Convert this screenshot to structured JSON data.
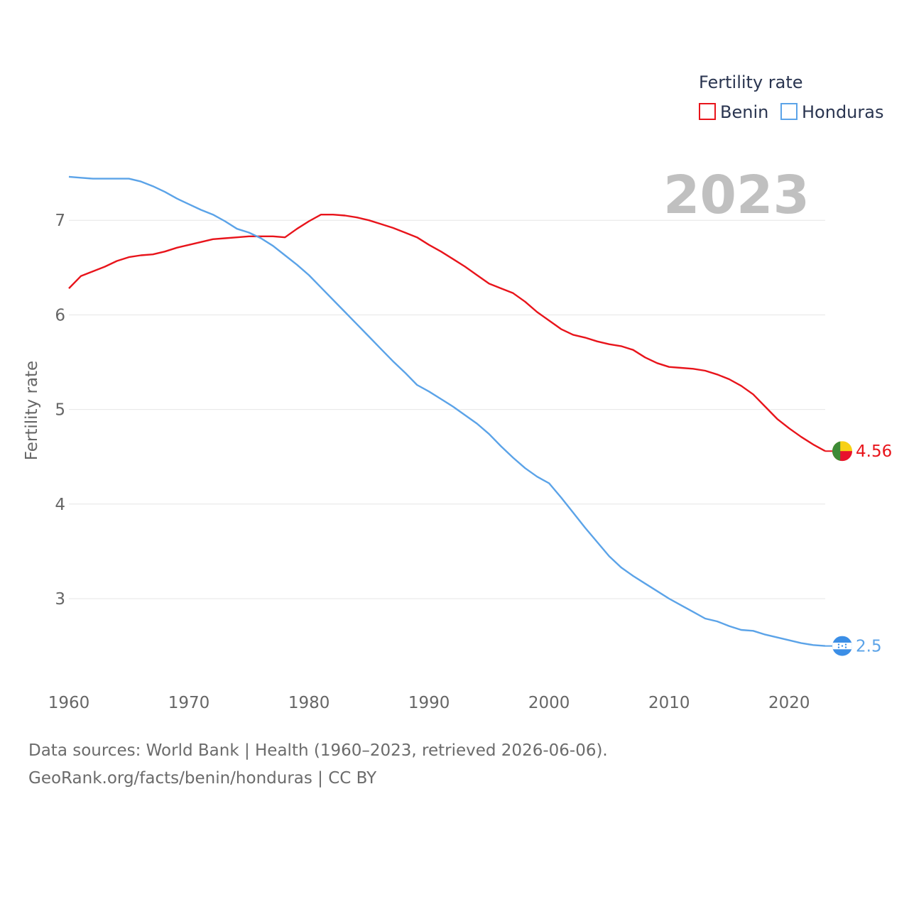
{
  "chart_data": {
    "type": "line",
    "title": "",
    "ylabel": "Fertility rate",
    "xlabel": "",
    "current_year": "2023",
    "xlim": [
      1960,
      2023
    ],
    "ylim": [
      2.2,
      7.7
    ],
    "x_ticks": [
      1960,
      1970,
      1980,
      1990,
      2000,
      2010,
      2020
    ],
    "y_ticks": [
      3,
      4,
      5,
      6,
      7
    ],
    "grid": true,
    "legend": {
      "title": "Fertility rate",
      "placement": "top-right"
    },
    "x": [
      1960,
      1961,
      1962,
      1963,
      1964,
      1965,
      1966,
      1967,
      1968,
      1969,
      1970,
      1971,
      1972,
      1973,
      1974,
      1975,
      1976,
      1977,
      1978,
      1979,
      1980,
      1981,
      1982,
      1983,
      1984,
      1985,
      1986,
      1987,
      1988,
      1989,
      1990,
      1991,
      1992,
      1993,
      1994,
      1995,
      1996,
      1997,
      1998,
      1999,
      2000,
      2001,
      2002,
      2003,
      2004,
      2005,
      2006,
      2007,
      2008,
      2009,
      2010,
      2011,
      2012,
      2013,
      2014,
      2015,
      2016,
      2017,
      2018,
      2019,
      2020,
      2021,
      2022,
      2023
    ],
    "series": [
      {
        "name": "Benin",
        "color": "#e8141b",
        "end_label": "4.56",
        "flag": "benin",
        "values": [
          6.28,
          6.41,
          6.46,
          6.51,
          6.57,
          6.61,
          6.63,
          6.64,
          6.67,
          6.71,
          6.74,
          6.77,
          6.8,
          6.81,
          6.82,
          6.83,
          6.83,
          6.83,
          6.82,
          6.91,
          6.99,
          7.06,
          7.06,
          7.05,
          7.03,
          7.0,
          6.96,
          6.92,
          6.87,
          6.82,
          6.74,
          6.67,
          6.59,
          6.51,
          6.42,
          6.33,
          6.28,
          6.23,
          6.14,
          6.03,
          5.94,
          5.85,
          5.79,
          5.76,
          5.72,
          5.69,
          5.67,
          5.63,
          5.55,
          5.49,
          5.45,
          5.44,
          5.43,
          5.41,
          5.37,
          5.32,
          5.25,
          5.16,
          5.03,
          4.9,
          4.8,
          4.71,
          4.63,
          4.56
        ]
      },
      {
        "name": "Honduras",
        "color": "#5ba3e8",
        "end_label": "2.5",
        "flag": "honduras",
        "values": [
          7.46,
          7.45,
          7.44,
          7.44,
          7.44,
          7.44,
          7.41,
          7.36,
          7.3,
          7.23,
          7.17,
          7.11,
          7.06,
          6.99,
          6.91,
          6.87,
          6.81,
          6.73,
          6.63,
          6.53,
          6.42,
          6.29,
          6.16,
          6.03,
          5.9,
          5.77,
          5.64,
          5.51,
          5.39,
          5.26,
          5.19,
          5.11,
          5.03,
          4.94,
          4.85,
          4.74,
          4.61,
          4.49,
          4.38,
          4.29,
          4.22,
          4.07,
          3.91,
          3.75,
          3.6,
          3.45,
          3.33,
          3.24,
          3.16,
          3.08,
          3.0,
          2.93,
          2.86,
          2.79,
          2.76,
          2.71,
          2.67,
          2.66,
          2.62,
          2.59,
          2.56,
          2.53,
          2.51,
          2.5
        ]
      }
    ]
  },
  "footer": {
    "sources": "Data sources: World Bank | Health (1960–2023, retrieved 2026-06-06).",
    "url": "GeoRank.org/facts/benin/honduras | CC BY"
  }
}
